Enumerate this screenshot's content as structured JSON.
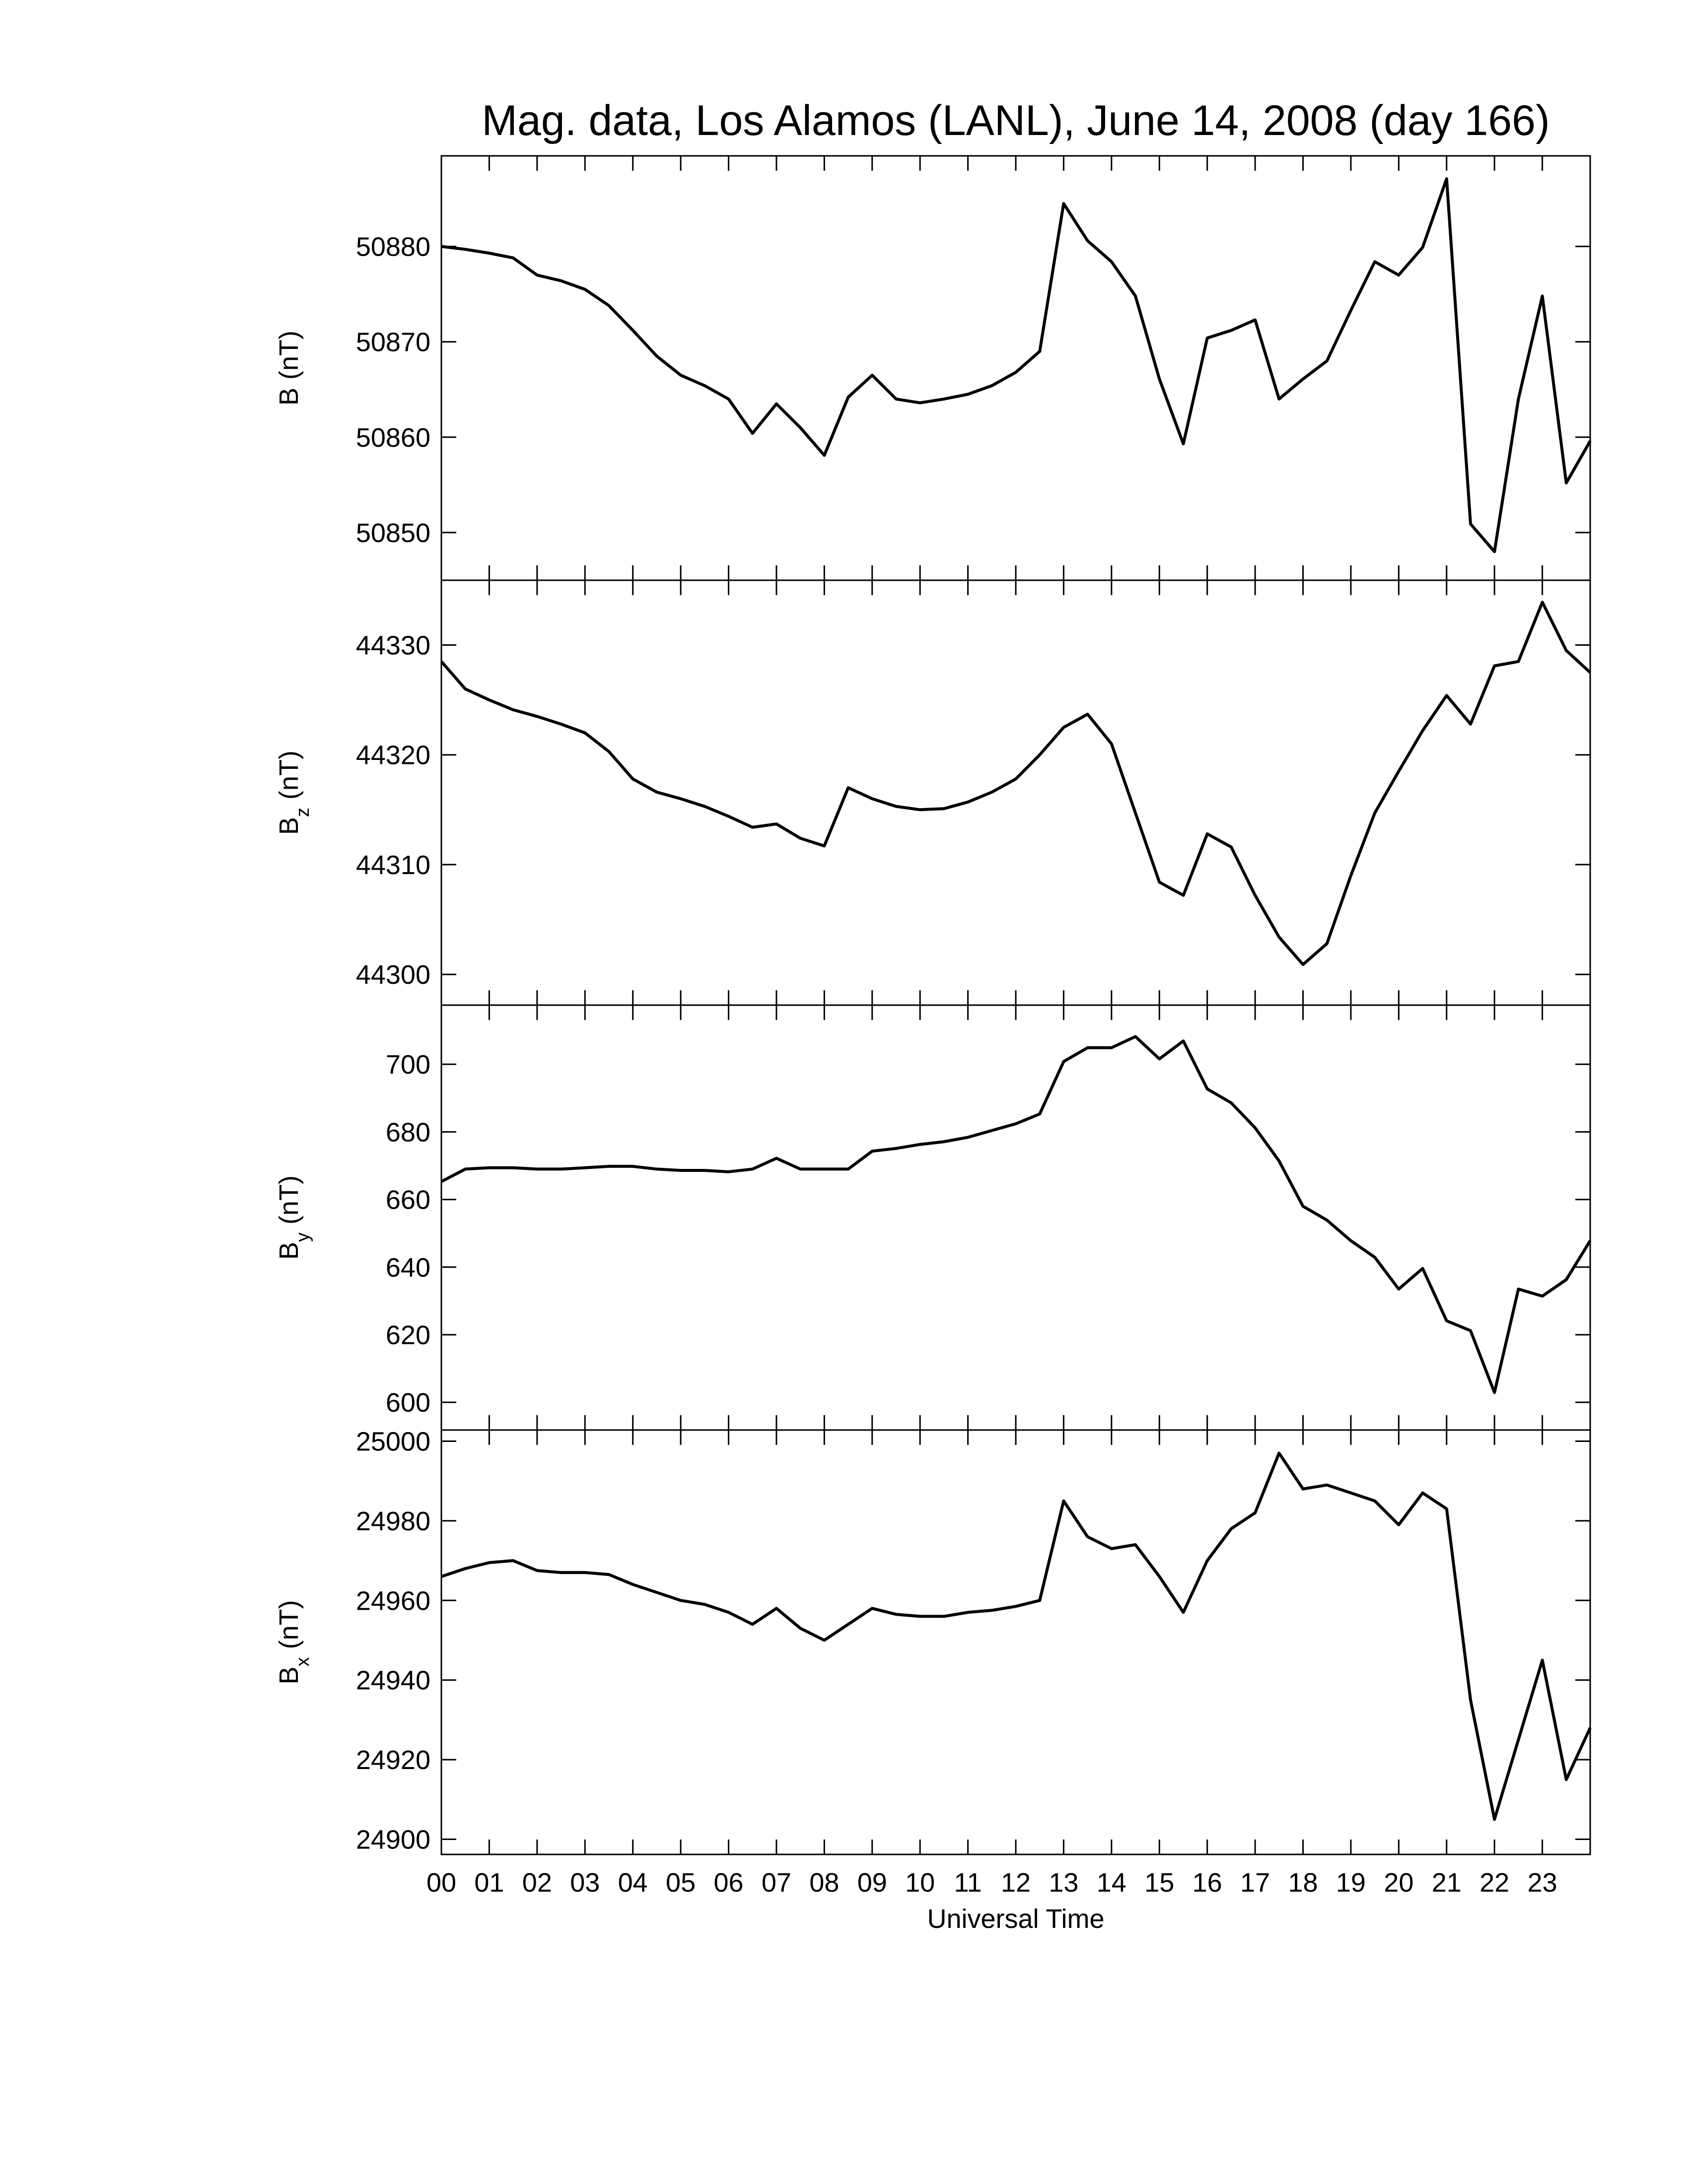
{
  "chart_data": [
    {
      "type": "line",
      "title": "Mag. data, Los Alamos (LANL), June 14, 2008 (day 166)",
      "ylabel": "B",
      "yunit": "(nT)",
      "xlim": [
        0,
        24
      ],
      "ylim": [
        50845,
        50889.5
      ],
      "yticks": [
        50850,
        50860,
        50870,
        50880
      ],
      "x": [
        0,
        0.5,
        1,
        1.5,
        2,
        2.5,
        3,
        3.5,
        4,
        4.5,
        5,
        5.5,
        6,
        6.5,
        7,
        7.5,
        8,
        8.5,
        9,
        9.5,
        10,
        10.5,
        11,
        11.5,
        12,
        12.5,
        13,
        13.5,
        14,
        14.5,
        15,
        15.5,
        16,
        16.5,
        17,
        17.5,
        18,
        18.5,
        19,
        19.5,
        20,
        20.5,
        21,
        21.5,
        22,
        22.5,
        23,
        23.5,
        24
      ],
      "series": [
        {
          "color": "#000000",
          "values": [
            50880,
            50879.7,
            50879.3,
            50878.8,
            50877,
            50876.4,
            50875.5,
            50873.8,
            50871.2,
            50868.5,
            50866.5,
            50865.4,
            50864,
            50860.4,
            50863.5,
            50861,
            50858.1,
            50864.2,
            50866.5,
            50864,
            50863.6,
            50864,
            50864.5,
            50865.4,
            50866.8,
            50869,
            50884.5,
            50880.6,
            50878.4,
            50874.8,
            50866.1,
            50859.3,
            50870.4,
            50871.2,
            50872.3,
            50864,
            50866.1,
            50868,
            50873.3,
            50878.4,
            50877,
            50879.9,
            50887.1,
            50850.9,
            50848,
            50864,
            50874.8,
            50855.2,
            50859.6
          ]
        }
      ]
    },
    {
      "type": "line",
      "ylabel": "B",
      "ylabel_sub": "z",
      "yunit": "(nT)",
      "xlim": [
        0,
        24
      ],
      "ylim": [
        44297.2,
        44335.9
      ],
      "yticks": [
        44300,
        44310,
        44320,
        44330
      ],
      "x": [
        0,
        0.5,
        1,
        1.5,
        2,
        2.5,
        3,
        3.5,
        4,
        4.5,
        5,
        5.5,
        6,
        6.5,
        7,
        7.5,
        8,
        8.5,
        9,
        9.5,
        10,
        10.5,
        11,
        11.5,
        12,
        12.5,
        13,
        13.5,
        14,
        14.5,
        15,
        15.5,
        16,
        16.5,
        17,
        17.5,
        18,
        18.5,
        19,
        19.5,
        20,
        20.5,
        21,
        21.5,
        22,
        22.5,
        23,
        23.5,
        24
      ],
      "series": [
        {
          "color": "#000000",
          "values": [
            44328.5,
            44326,
            44325,
            44324.1,
            44323.5,
            44322.8,
            44322,
            44320.3,
            44317.8,
            44316.6,
            44316,
            44315.3,
            44314.4,
            44313.4,
            44313.7,
            44312.4,
            44311.7,
            44317,
            44316,
            44315.3,
            44315,
            44315.1,
            44315.7,
            44316.6,
            44317.8,
            44320,
            44322.5,
            44323.7,
            44321,
            44314.7,
            44308.4,
            44307.2,
            44312.8,
            44311.6,
            44307.2,
            44303.4,
            44300.9,
            44302.8,
            44309,
            44314.7,
            44318.5,
            44322.2,
            44325.4,
            44322.8,
            44328.1,
            44328.5,
            44333.9,
            44329.5,
            44327.5
          ]
        }
      ]
    },
    {
      "type": "line",
      "ylabel": "B",
      "ylabel_sub": "y",
      "yunit": "(nT)",
      "xlim": [
        0,
        24
      ],
      "ylim": [
        591.8,
        717.5
      ],
      "yticks": [
        600,
        620,
        640,
        660,
        680,
        700
      ],
      "x": [
        0,
        0.5,
        1,
        1.5,
        2,
        2.5,
        3,
        3.5,
        4,
        4.5,
        5,
        5.5,
        6,
        6.5,
        7,
        7.5,
        8,
        8.5,
        9,
        9.5,
        10,
        10.5,
        11,
        11.5,
        12,
        12.5,
        13,
        13.5,
        14,
        14.5,
        15,
        15.5,
        16,
        16.5,
        17,
        17.5,
        18,
        18.5,
        19,
        19.5,
        20,
        20.5,
        21,
        21.5,
        22,
        22.5,
        23,
        23.5,
        24
      ],
      "series": [
        {
          "color": "#000000",
          "values": [
            665.3,
            669,
            669.4,
            669.4,
            669,
            669,
            669.4,
            669.8,
            669.8,
            669,
            668.6,
            668.6,
            668.2,
            669,
            672.2,
            669,
            669,
            669,
            674.3,
            675.1,
            676.3,
            677.1,
            678.4,
            680.4,
            682.4,
            685.3,
            700.8,
            704.9,
            704.9,
            708.2,
            701.6,
            706.9,
            692.7,
            688.6,
            681.2,
            671.4,
            658,
            653.9,
            647.8,
            642.9,
            633.5,
            639.6,
            624.1,
            621.2,
            602.9,
            633.5,
            631.4,
            636.3,
            647.8
          ]
        }
      ]
    },
    {
      "type": "line",
      "ylabel": "B",
      "ylabel_sub": "x",
      "yunit": "(nT)",
      "xlabel": "Universal Time",
      "xlim": [
        0,
        24
      ],
      "ylim": [
        24896.2,
        25002.8
      ],
      "yticks": [
        24900,
        24920,
        24940,
        24960,
        24980,
        25000
      ],
      "xticks": [
        {
          "value": 0,
          "label": "00"
        },
        {
          "value": 1,
          "label": "01"
        },
        {
          "value": 2,
          "label": "02"
        },
        {
          "value": 3,
          "label": "03"
        },
        {
          "value": 4,
          "label": "04"
        },
        {
          "value": 5,
          "label": "05"
        },
        {
          "value": 6,
          "label": "06"
        },
        {
          "value": 7,
          "label": "07"
        },
        {
          "value": 8,
          "label": "08"
        },
        {
          "value": 9,
          "label": "09"
        },
        {
          "value": 10,
          "label": "10"
        },
        {
          "value": 11,
          "label": "11"
        },
        {
          "value": 12,
          "label": "12"
        },
        {
          "value": 13,
          "label": "13"
        },
        {
          "value": 14,
          "label": "14"
        },
        {
          "value": 15,
          "label": "15"
        },
        {
          "value": 16,
          "label": "16"
        },
        {
          "value": 17,
          "label": "17"
        },
        {
          "value": 18,
          "label": "18"
        },
        {
          "value": 19,
          "label": "19"
        },
        {
          "value": 20,
          "label": "20"
        },
        {
          "value": 21,
          "label": "21"
        },
        {
          "value": 22,
          "label": "22"
        },
        {
          "value": 23,
          "label": "23"
        }
      ],
      "x": [
        0,
        0.5,
        1,
        1.5,
        2,
        2.5,
        3,
        3.5,
        4,
        4.5,
        5,
        5.5,
        6,
        6.5,
        7,
        7.5,
        8,
        8.5,
        9,
        9.5,
        10,
        10.5,
        11,
        11.5,
        12,
        12.5,
        13,
        13.5,
        14,
        14.5,
        15,
        15.5,
        16,
        16.5,
        17,
        17.5,
        18,
        18.5,
        19,
        19.5,
        20,
        20.5,
        21,
        21.5,
        22,
        22.5,
        23,
        23.5,
        24
      ],
      "series": [
        {
          "color": "#000000",
          "values": [
            24966,
            24968,
            24969.5,
            24970,
            24967.5,
            24967,
            24967,
            24966.5,
            24964,
            24962,
            24960,
            24959,
            24957,
            24954,
            24958,
            24953,
            24950,
            24954,
            24958,
            24956.5,
            24956,
            24956,
            24957,
            24957.5,
            24958.5,
            24960,
            24985,
            24976,
            24973,
            24974,
            24966,
            24957,
            24970,
            24978,
            24982,
            24997,
            24988,
            24989,
            24987,
            24985,
            24979,
            24987,
            24983,
            24935,
            24905,
            24925,
            24945,
            24915,
            24928
          ]
        }
      ]
    }
  ]
}
